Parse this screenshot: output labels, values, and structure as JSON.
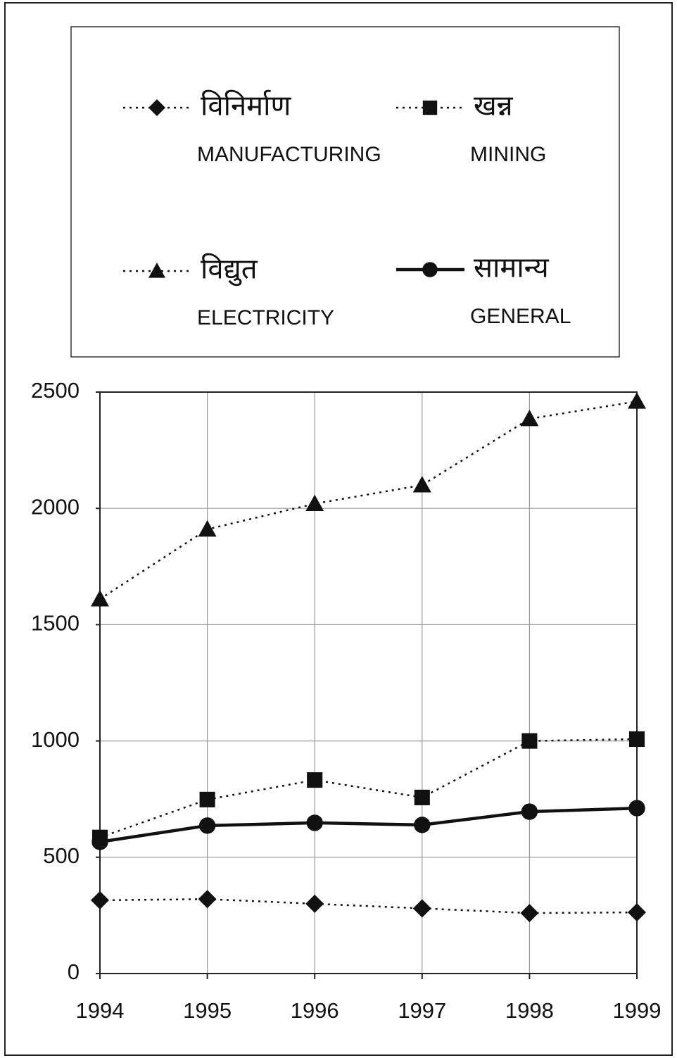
{
  "chart_data": {
    "type": "line",
    "categories": [
      "1994",
      "1995",
      "1996",
      "1997",
      "1998",
      "1999"
    ],
    "series": [
      {
        "name": "विनिर्माण",
        "name_en": "MANUFACTURING",
        "color": "#111",
        "marker": "diamond",
        "line_style": "dotted",
        "values": [
          315,
          320,
          300,
          280,
          260,
          263
        ]
      },
      {
        "name": "खन्न",
        "name_en": "MINING",
        "color": "#111",
        "marker": "square",
        "line_style": "dotted",
        "values": [
          585,
          748,
          832,
          757,
          1000,
          1008
        ]
      },
      {
        "name": "विद्युत",
        "name_en": "ELECTRICITY",
        "color": "#111",
        "marker": "triangle",
        "line_style": "dotted",
        "values": [
          1610,
          1910,
          2020,
          2100,
          2385,
          2460
        ]
      },
      {
        "name": "सामान्य",
        "name_en": "GENERAL",
        "color": "#111",
        "marker": "circle",
        "line_style": "solid",
        "values": [
          566,
          636,
          648,
          639,
          696,
          711
        ]
      }
    ],
    "ylim": [
      0,
      2500
    ],
    "yticks": [
      0,
      500,
      1000,
      1500,
      2000,
      2500
    ],
    "grid": true,
    "legend": "top"
  }
}
